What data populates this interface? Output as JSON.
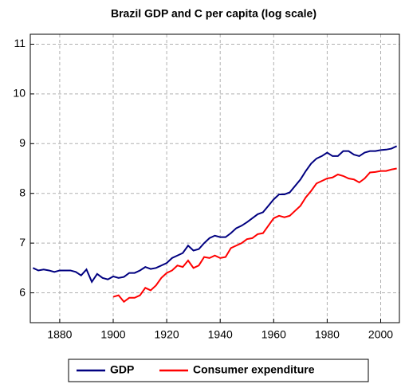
{
  "chart_data": {
    "type": "line",
    "title": "Brazil GDP and C per capita (log scale)",
    "x": [
      1870,
      1872,
      1874,
      1876,
      1878,
      1880,
      1882,
      1884,
      1886,
      1888,
      1890,
      1892,
      1894,
      1896,
      1898,
      1900,
      1902,
      1904,
      1906,
      1908,
      1910,
      1912,
      1914,
      1916,
      1918,
      1920,
      1922,
      1924,
      1926,
      1928,
      1930,
      1932,
      1934,
      1936,
      1938,
      1940,
      1942,
      1944,
      1946,
      1948,
      1950,
      1952,
      1954,
      1956,
      1958,
      1960,
      1962,
      1964,
      1966,
      1968,
      1970,
      1972,
      1974,
      1976,
      1978,
      1980,
      1982,
      1984,
      1986,
      1988,
      1990,
      1992,
      1994,
      1996,
      1998,
      2000,
      2002,
      2004,
      2006
    ],
    "series": [
      {
        "name": "GDP",
        "color": "#000080",
        "values": [
          6.5,
          6.45,
          6.47,
          6.45,
          6.42,
          6.45,
          6.45,
          6.45,
          6.42,
          6.35,
          6.47,
          6.22,
          6.38,
          6.3,
          6.27,
          6.33,
          6.3,
          6.32,
          6.4,
          6.4,
          6.45,
          6.52,
          6.48,
          6.5,
          6.55,
          6.6,
          6.7,
          6.75,
          6.8,
          6.95,
          6.85,
          6.88,
          7.0,
          7.1,
          7.15,
          7.12,
          7.12,
          7.2,
          7.3,
          7.35,
          7.42,
          7.5,
          7.58,
          7.62,
          7.75,
          7.88,
          7.98,
          7.98,
          8.02,
          8.15,
          8.28,
          8.45,
          8.6,
          8.7,
          8.75,
          8.82,
          8.75,
          8.75,
          8.85,
          8.85,
          8.78,
          8.75,
          8.82,
          8.85,
          8.85,
          8.87,
          8.88,
          8.9,
          8.95
        ]
      },
      {
        "name": "Consumer expenditure",
        "color": "#ff0000",
        "values": [
          null,
          null,
          null,
          null,
          null,
          null,
          null,
          null,
          null,
          null,
          null,
          null,
          null,
          null,
          null,
          5.92,
          5.95,
          5.82,
          5.9,
          5.9,
          5.95,
          6.1,
          6.05,
          6.15,
          6.3,
          6.4,
          6.45,
          6.55,
          6.52,
          6.65,
          6.5,
          6.55,
          6.72,
          6.7,
          6.75,
          6.7,
          6.72,
          6.9,
          6.95,
          7.0,
          7.08,
          7.1,
          7.18,
          7.2,
          7.35,
          7.5,
          7.55,
          7.52,
          7.55,
          7.65,
          7.75,
          7.92,
          8.05,
          8.2,
          8.25,
          8.3,
          8.32,
          8.38,
          8.35,
          8.3,
          8.28,
          8.22,
          8.3,
          8.42,
          8.43,
          8.45,
          8.45,
          8.48,
          8.5
        ]
      }
    ],
    "xlim": [
      1869,
      2007
    ],
    "xticks": [
      1880,
      1900,
      1920,
      1940,
      1960,
      1980,
      2000
    ],
    "ylim": [
      5.4,
      11.2
    ],
    "yticks": [
      6,
      7,
      8,
      9,
      10,
      11
    ],
    "grid": true,
    "legend": "bottom"
  }
}
